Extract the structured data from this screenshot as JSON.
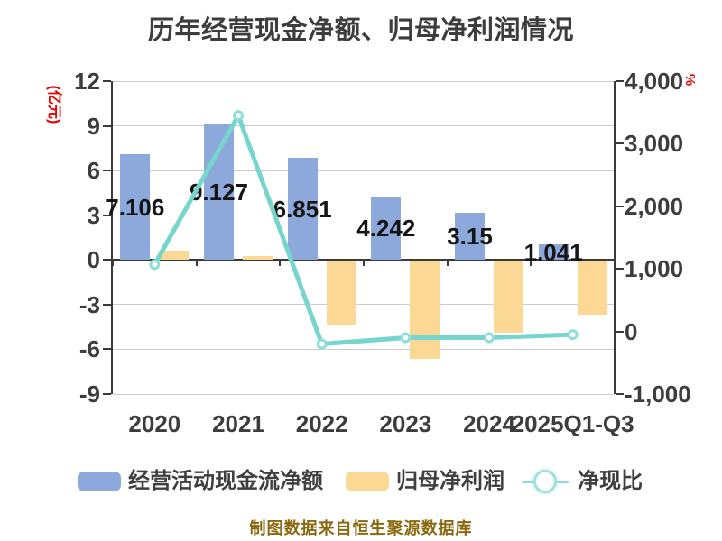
{
  "chart_data": {
    "type": "bar",
    "subtype": "dual-axis bar + line combo",
    "title": "历年经营现金净额、归母净利润情况",
    "caption": "制图数据来自恒生聚源数据库",
    "categories": [
      "2020",
      "2021",
      "2022",
      "2023",
      "2024",
      "2025Q1-Q3"
    ],
    "left_axis": {
      "name": "(亿元)",
      "min": -9,
      "max": 12,
      "ticks": [
        12,
        9,
        6,
        3,
        0,
        -3,
        -6,
        -9
      ],
      "tick_labels": [
        "12",
        "9",
        "6",
        "3",
        "0",
        "-3",
        "-6",
        "-9"
      ]
    },
    "right_axis": {
      "name": "%",
      "min": -1000,
      "max": 4000,
      "ticks": [
        4000,
        3000,
        2000,
        1000,
        0,
        -1000
      ],
      "tick_labels": [
        "4,000",
        "3,000",
        "2,000",
        "1,000",
        "0",
        "-1,000"
      ]
    },
    "grid": "horizontal gridlines at left-axis ticks",
    "legend_position": "bottom",
    "series": [
      {
        "name": "经营活动现金流净额",
        "type": "bar",
        "axis": "left",
        "color": "#8da8da",
        "values": [
          7.106,
          9.127,
          6.851,
          4.242,
          3.15,
          1.041
        ],
        "data_labels": [
          "7.106",
          "9.127",
          "6.851",
          "4.242",
          "3.15",
          "1.041"
        ]
      },
      {
        "name": "归母净利润",
        "type": "bar",
        "axis": "left",
        "color": "#fbd893",
        "values": [
          0.6,
          0.25,
          -4.3,
          -6.6,
          -4.8,
          -3.6
        ]
      },
      {
        "name": "净现比",
        "type": "line",
        "axis": "right",
        "color": "#76d5cd",
        "marker": "circle-white-fill",
        "values": [
          1070,
          3450,
          -200,
          -100,
          -100,
          -50
        ]
      }
    ]
  }
}
